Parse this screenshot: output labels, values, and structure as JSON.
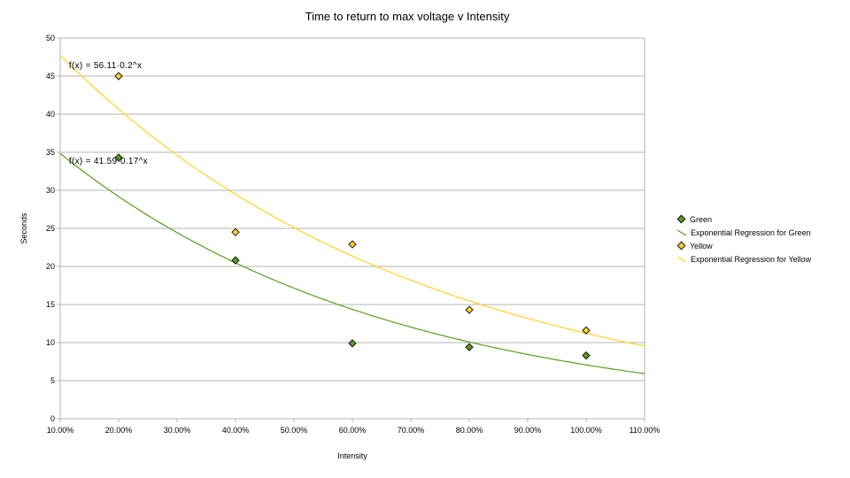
{
  "colors": {
    "green_series": "#579d1c",
    "yellow_series": "#ffd320",
    "grid": "#b3b3b3",
    "marker_border": "#1a1a1a",
    "text": "#000000",
    "background": "#ffffff"
  },
  "chart_data": {
    "type": "scatter",
    "title": "Time to return to max voltage v Intensity",
    "xlabel": "Intensity",
    "ylabel": "Seconds",
    "xlim": [
      0.1,
      1.1
    ],
    "ylim": [
      0,
      50
    ],
    "x_tick_values": [
      0.1,
      0.2,
      0.3,
      0.4,
      0.5,
      0.6,
      0.7,
      0.8,
      0.9,
      1.0,
      1.1
    ],
    "x_tick_labels": [
      "10.00%",
      "20.00%",
      "30.00%",
      "40.00%",
      "50.00%",
      "60.00%",
      "70.00%",
      "80.00%",
      "90.00%",
      "100.00%",
      "110.00%"
    ],
    "y_tick_values": [
      0,
      5,
      10,
      15,
      20,
      25,
      30,
      35,
      40,
      45,
      50
    ],
    "y_tick_labels": [
      "0",
      "5",
      "10",
      "15",
      "20",
      "25",
      "30",
      "35",
      "40",
      "45",
      "50"
    ],
    "grid": "horizontal",
    "legend_position": "right",
    "series": [
      {
        "name": "Green",
        "kind": "points",
        "marker": "diamond",
        "color": "#579d1c",
        "x": [
          0.2,
          0.4,
          0.6,
          0.8,
          1.0
        ],
        "y": [
          34.3,
          20.8,
          9.9,
          9.4,
          8.3
        ]
      },
      {
        "name": "Exponential Regression for Green",
        "kind": "regression",
        "color": "#579d1c",
        "formula": "f(x) = 41.59·0.17^x",
        "a": 41.59,
        "b": 0.17
      },
      {
        "name": "Yellow",
        "kind": "points",
        "marker": "diamond",
        "color": "#ffd320",
        "x": [
          0.2,
          0.4,
          0.6,
          0.8,
          1.0
        ],
        "y": [
          45.0,
          24.5,
          22.9,
          14.3,
          11.6
        ]
      },
      {
        "name": "Exponential Regression for Yellow",
        "kind": "regression",
        "color": "#ffd320",
        "formula": "f(x) = 56.11·0.2^x",
        "a": 56.11,
        "b": 0.2
      }
    ],
    "annotations": [
      {
        "text": "f(x) = 56.11·0.2^x",
        "x": 0.115,
        "y": 46.3
      },
      {
        "text": "f(x) = 41.59·0.17^x",
        "x": 0.115,
        "y": 33.7
      }
    ],
    "legend_items": [
      {
        "label": "Green",
        "marker": "diamond",
        "color": "#579d1c"
      },
      {
        "label": "Exponential Regression for Green",
        "marker": "line",
        "color": "#579d1c"
      },
      {
        "label": "Yellow",
        "marker": "diamond",
        "color": "#ffd320"
      },
      {
        "label": "Exponential Regression for Yellow",
        "marker": "line",
        "color": "#ffd320"
      }
    ]
  }
}
